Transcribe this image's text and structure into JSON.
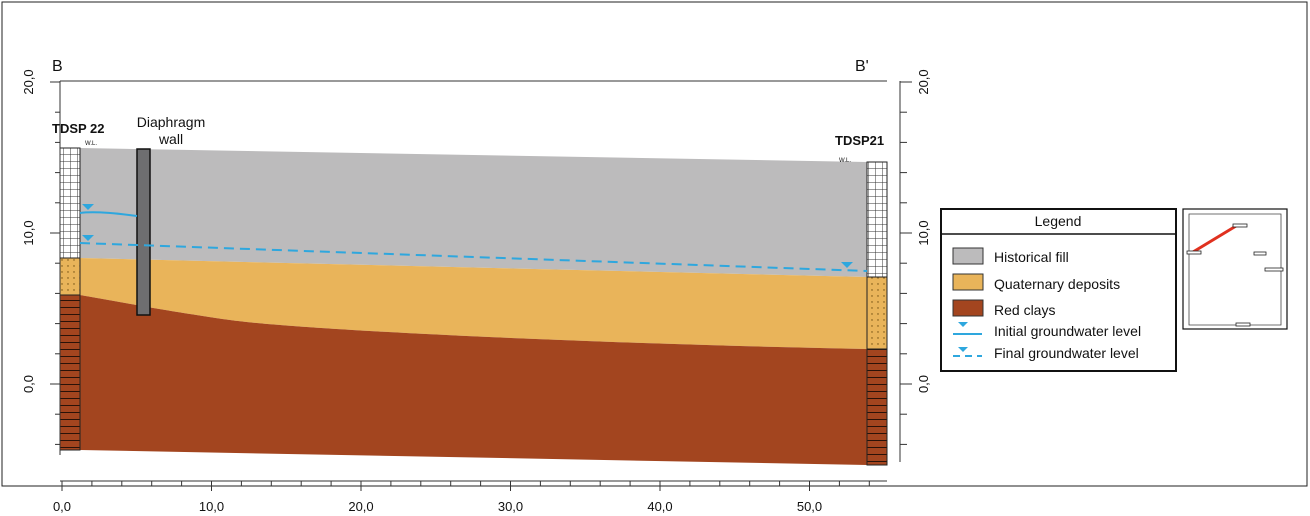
{
  "section": {
    "left_label": "B",
    "right_label": "B'"
  },
  "boreholes": {
    "left": {
      "name": "TDSP 22",
      "wl": "W.L."
    },
    "right": {
      "name": "TDSP21",
      "wl": "W.L."
    }
  },
  "wall": {
    "label_line1": "Diaphragm",
    "label_line2": "wall"
  },
  "axes": {
    "x_ticks": [
      "0,0",
      "10,0",
      "20,0",
      "30,0",
      "40,0",
      "50,0"
    ],
    "x_values": [
      0,
      10,
      20,
      30,
      40,
      50
    ],
    "y_ticks": [
      "0,0",
      "10,0",
      "20,0"
    ],
    "y_values": [
      0,
      10,
      20
    ],
    "x_range": [
      0,
      54
    ],
    "y_range": [
      -5,
      20
    ]
  },
  "legend": {
    "title": "Legend",
    "items": [
      {
        "label": "Historical fill",
        "color": "#bcbbbc",
        "kind": "swatch"
      },
      {
        "label": "Quaternary deposits",
        "color": "#e9b45a",
        "kind": "swatch"
      },
      {
        "label": "Red clays",
        "color": "#a3451f",
        "kind": "swatch"
      },
      {
        "label": "Initial groundwater level",
        "color": "#2ea7de",
        "kind": "solid-line"
      },
      {
        "label": "Final groundwater level",
        "color": "#2ea7de",
        "kind": "dashed-line"
      }
    ]
  },
  "colors": {
    "fill": "#bcbbbc",
    "quaternary": "#e9b45a",
    "clay": "#a3451f",
    "water": "#2ea7de",
    "wall": "#6e6e70"
  }
}
